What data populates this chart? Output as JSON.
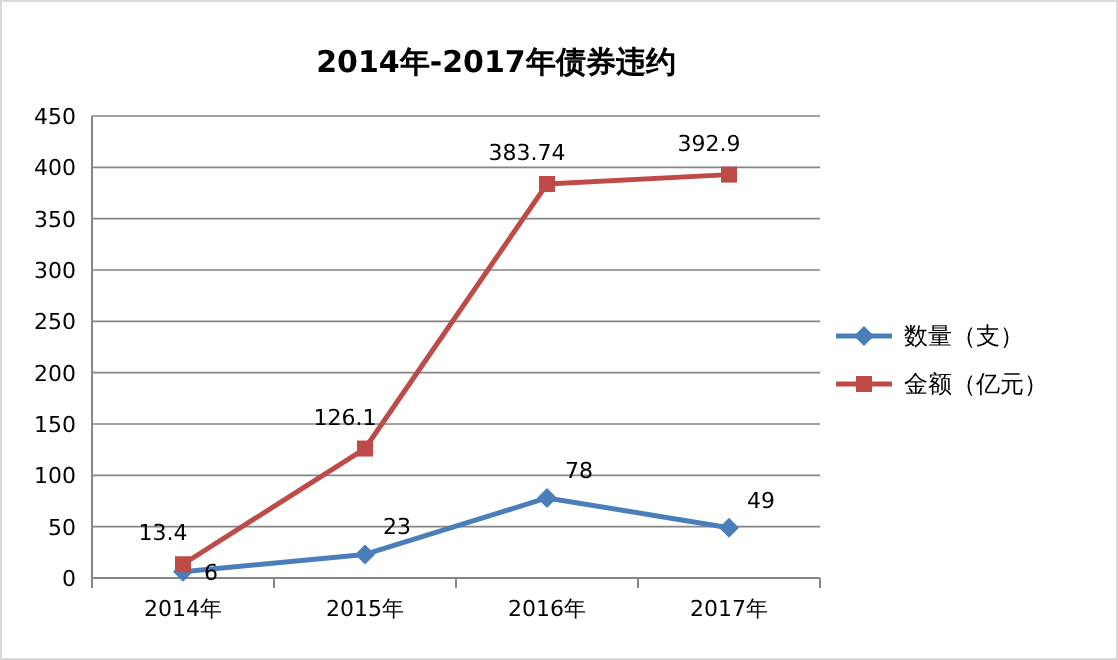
{
  "chart_data": {
    "type": "line",
    "title": "2014年-2017年债券违约",
    "categories": [
      "2014年",
      "2015年",
      "2016年",
      "2017年"
    ],
    "series": [
      {
        "name": "数量（支）",
        "color": "#4a7ebb",
        "marker": "diamond",
        "values": [
          6,
          23,
          78,
          49
        ]
      },
      {
        "name": "金额（亿元）",
        "color": "#be4b48",
        "marker": "square",
        "values": [
          13.4,
          126.1,
          383.74,
          392.9
        ]
      }
    ],
    "ylim": [
      0,
      450
    ],
    "yticks": [
      0,
      50,
      100,
      150,
      200,
      250,
      300,
      350,
      400,
      450
    ],
    "grid": "y",
    "legend": "right",
    "data_labels": true,
    "line_style": "solid"
  }
}
